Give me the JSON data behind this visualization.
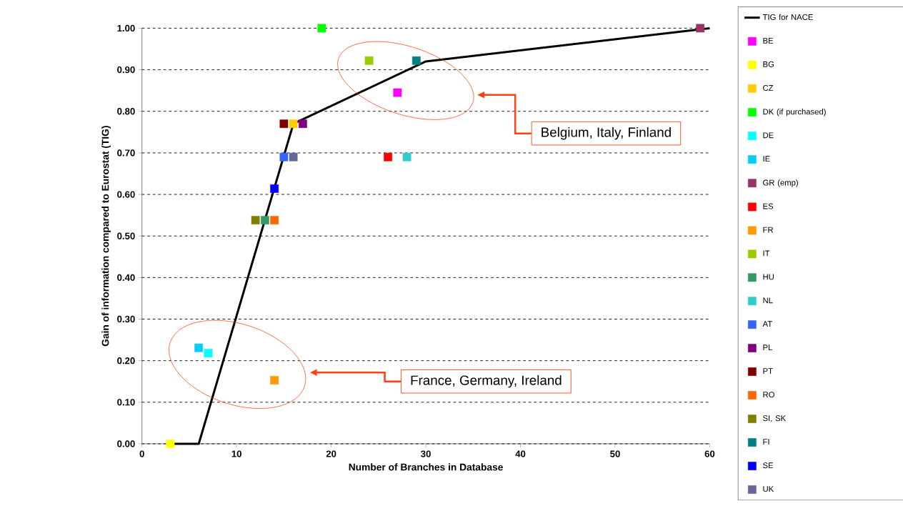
{
  "chart_data": {
    "type": "scatter",
    "xlabel": "Number of Branches in Database",
    "ylabel": "Gain of information compared to Eurostat (TIG)",
    "xlim": [
      0,
      60
    ],
    "ylim": [
      0,
      1.0
    ],
    "xticks": [
      0,
      10,
      20,
      30,
      40,
      50,
      60
    ],
    "yticks": [
      {
        "value": 0,
        "label": "0.00"
      },
      {
        "value": 0.1,
        "label": "0.10"
      },
      {
        "value": 0.2,
        "label": "0.20"
      },
      {
        "value": 0.3,
        "label": "0.30"
      },
      {
        "value": 0.4,
        "label": "0.40"
      },
      {
        "value": 0.5,
        "label": "0.50"
      },
      {
        "value": 0.6,
        "label": "0.60"
      },
      {
        "value": 0.7,
        "label": "0.70"
      },
      {
        "value": 0.8,
        "label": "0.80"
      },
      {
        "value": 0.9,
        "label": "0.90"
      },
      {
        "value": 1.0,
        "label": "1.00"
      }
    ],
    "grid": "y",
    "legend": "right",
    "marker": "square",
    "series": [
      {
        "name": "TIG for NACE",
        "type": "line",
        "marker": "none",
        "color": "#000000",
        "x": [
          3,
          6,
          16,
          30,
          60
        ],
        "values": [
          0,
          0,
          0.77,
          0.92,
          1.0
        ]
      },
      {
        "name": "BE",
        "color": "#ff00ff",
        "x": [
          27
        ],
        "values": [
          0.845
        ]
      },
      {
        "name": "BG",
        "color": "#ffff00",
        "x": [
          3
        ],
        "values": [
          0
        ]
      },
      {
        "name": "CZ",
        "color": "#ffcc00",
        "x": [
          16
        ],
        "values": [
          0.77
        ]
      },
      {
        "name": "DK (if purchased)",
        "color": "#00ff00",
        "x": [
          19
        ],
        "values": [
          1.0
        ]
      },
      {
        "name": "DE",
        "color": "#00ffff",
        "x": [
          7
        ],
        "values": [
          0.218
        ]
      },
      {
        "name": "IE",
        "color": "#00ccff",
        "x": [
          6
        ],
        "values": [
          0.231
        ]
      },
      {
        "name": "GR (emp)",
        "color": "#993366",
        "x": [
          59
        ],
        "values": [
          1.0
        ]
      },
      {
        "name": "ES",
        "color": "#ff0000",
        "x": [
          26
        ],
        "values": [
          0.69
        ]
      },
      {
        "name": "FR",
        "color": "#ff9900",
        "x": [
          14
        ],
        "values": [
          0.153
        ]
      },
      {
        "name": "IT",
        "color": "#99cc00",
        "x": [
          24
        ],
        "values": [
          0.922
        ]
      },
      {
        "name": "HU",
        "color": "#339966",
        "x": [
          13
        ],
        "values": [
          0.538
        ]
      },
      {
        "name": "NL",
        "color": "#33cccc",
        "x": [
          28
        ],
        "values": [
          0.69
        ]
      },
      {
        "name": "AT",
        "color": "#3366ff",
        "x": [
          15
        ],
        "values": [
          0.69
        ]
      },
      {
        "name": "PL",
        "color": "#800080",
        "x": [
          17
        ],
        "values": [
          0.77
        ]
      },
      {
        "name": "PT",
        "color": "#800000",
        "x": [
          15
        ],
        "values": [
          0.77
        ]
      },
      {
        "name": "RO",
        "color": "#ff6600",
        "x": [
          14
        ],
        "values": [
          0.538
        ]
      },
      {
        "name": "SI, SK",
        "color": "#808000",
        "x": [
          12
        ],
        "values": [
          0.538
        ]
      },
      {
        "name": "FI",
        "color": "#008080",
        "x": [
          29
        ],
        "values": [
          0.922
        ]
      },
      {
        "name": "SE",
        "color": "#0000ff",
        "x": [
          14
        ],
        "values": [
          0.614
        ]
      },
      {
        "name": "UK",
        "color": "#666699",
        "x": [
          16
        ],
        "values": [
          0.69
        ]
      }
    ],
    "annotations": [
      "Belgium, Italy, Finland",
      "France, Germany, Ireland"
    ]
  }
}
